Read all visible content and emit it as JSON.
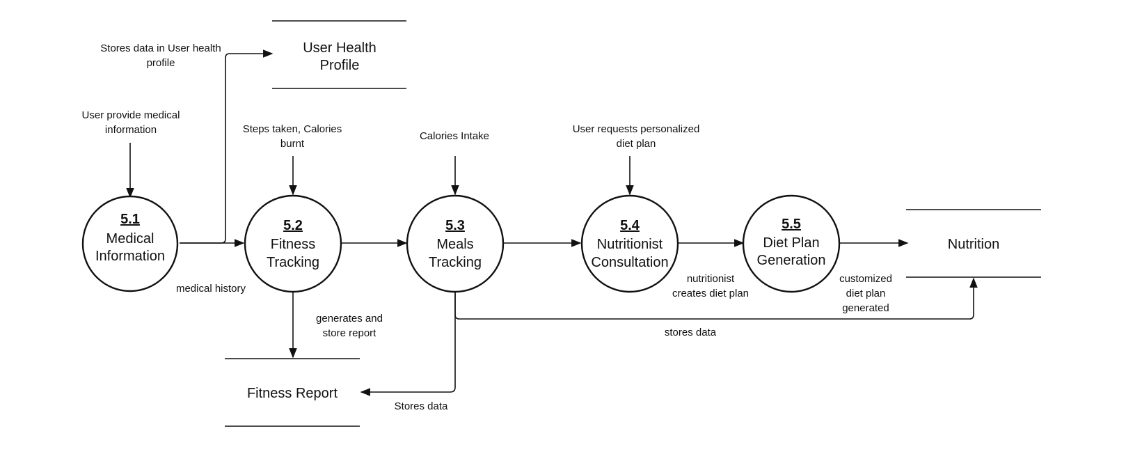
{
  "processes": [
    {
      "id": "5.1",
      "name": [
        "Medical",
        "Information"
      ]
    },
    {
      "id": "5.2",
      "name": [
        "Fitness",
        "Tracking"
      ]
    },
    {
      "id": "5.3",
      "name": [
        "Meals",
        "Tracking"
      ]
    },
    {
      "id": "5.4",
      "name": [
        "Nutritionist",
        "Consultation"
      ]
    },
    {
      "id": "5.5",
      "name": [
        "Diet Plan",
        "Generation"
      ]
    }
  ],
  "stores": {
    "user_health_profile": [
      "User Health",
      "Profile"
    ],
    "fitness_report": "Fitness Report",
    "nutrition": "Nutrition"
  },
  "flows": {
    "stores_user_health": [
      "Stores data in User health",
      "profile"
    ],
    "user_provide_medical": [
      "User provide medical",
      "information"
    ],
    "steps_calories": [
      "Steps taken, Calories",
      "burnt"
    ],
    "calories_intake": "Calories Intake",
    "user_requests_diet": [
      "User requests personalized",
      "diet plan"
    ],
    "medical_history": "medical history",
    "generates_store_report": [
      "generates and",
      "store report"
    ],
    "stores_data_report": "Stores data",
    "stores_data_nutrition": "stores data",
    "nutritionist_creates": [
      "nutritionist",
      "creates diet plan"
    ],
    "customized_diet": [
      "customized",
      "diet plan",
      "generated"
    ]
  }
}
